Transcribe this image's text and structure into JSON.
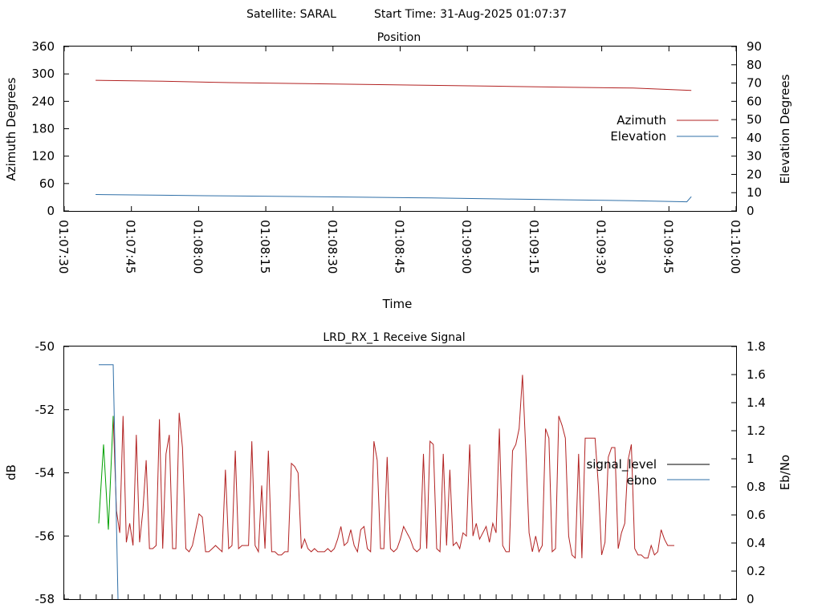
{
  "page": {
    "satellite_label": "Satellite: SARAL",
    "start_time_label": "Start Time: 31-Aug-2025 01:07:37"
  },
  "colors": {
    "azimuth": "#b22222",
    "elevation": "#2f6fa7",
    "signal_level": "#b22222",
    "ebno": "#2f6fa7",
    "start_trace": "#00a000",
    "legend_signal_level": "#000000"
  },
  "chart_data": [
    {
      "type": "line",
      "title": "Position",
      "xlabel": "Time",
      "ylabel": "Azimuth Degrees",
      "y2label": "Elevation Degrees",
      "xlim_seconds": [
        0,
        150
      ],
      "x_tick_labels": [
        "01:07:30",
        "01:07:45",
        "01:08:00",
        "01:08:15",
        "01:08:30",
        "01:08:45",
        "01:09:00",
        "01:09:15",
        "01:09:30",
        "01:09:45",
        "01:10:00"
      ],
      "ylim": [
        0,
        360
      ],
      "y_ticks": [
        0,
        60,
        120,
        180,
        240,
        300,
        360
      ],
      "y2lim": [
        0,
        90
      ],
      "y2_ticks": [
        0,
        10,
        20,
        30,
        40,
        50,
        60,
        70,
        80,
        90
      ],
      "legend": "right",
      "series": [
        {
          "name": "Azimuth",
          "axis": "y",
          "x": [
            "01:07:37",
            "01:07:52",
            "01:08:07",
            "01:08:22",
            "01:08:37",
            "01:08:52",
            "01:09:07",
            "01:09:22",
            "01:09:37",
            "01:09:50"
          ],
          "values": [
            286,
            284,
            281,
            279,
            277,
            275,
            273,
            271,
            269,
            264
          ]
        },
        {
          "name": "Elevation",
          "axis": "y2",
          "x": [
            "01:07:37",
            "01:07:52",
            "01:08:07",
            "01:08:22",
            "01:08:37",
            "01:08:52",
            "01:09:07",
            "01:09:22",
            "01:09:37",
            "01:09:47",
            "01:09:49",
            "01:09:50"
          ],
          "values": [
            9.0,
            8.6,
            8.2,
            7.9,
            7.5,
            7.1,
            6.6,
            6.1,
            5.6,
            5.1,
            5.0,
            7.8
          ]
        }
      ]
    },
    {
      "type": "line",
      "title": "LRD_RX_1 Receive Signal",
      "ylabel": "dB",
      "y2label": "Eb/No",
      "ylim": [
        -58,
        -50
      ],
      "y_ticks": [
        -58,
        -56,
        -54,
        -52,
        -50
      ],
      "y2lim": [
        0,
        1.8
      ],
      "y2_ticks": [
        0,
        0.2,
        0.4,
        0.6,
        0.8,
        1,
        1.2,
        1.4,
        1.6,
        1.8
      ],
      "x_tick_count": 42,
      "legend": "right",
      "series": [
        {
          "name": "signal_level",
          "axis": "y",
          "values": [
            -52.2,
            -55.2,
            -55.9,
            -52.2,
            -56.2,
            -55.6,
            -56.3,
            -52.8,
            -56.2,
            -55.2,
            -53.6,
            -56.4,
            -56.4,
            -56.3,
            -52.3,
            -56.4,
            -53.4,
            -52.8,
            -56.4,
            -56.4,
            -52.1,
            -53.2,
            -56.4,
            -56.5,
            -56.3,
            -55.8,
            -55.3,
            -55.4,
            -56.5,
            -56.5,
            -56.4,
            -56.3,
            -56.4,
            -56.5,
            -53.9,
            -56.4,
            -56.3,
            -53.3,
            -56.4,
            -56.3,
            -56.3,
            -56.3,
            -53.0,
            -56.3,
            -56.5,
            -54.4,
            -56.4,
            -53.3,
            -56.5,
            -56.5,
            -56.6,
            -56.6,
            -56.5,
            -56.5,
            -53.7,
            -53.8,
            -54.0,
            -56.4,
            -56.1,
            -56.4,
            -56.5,
            -56.4,
            -56.5,
            -56.5,
            -56.5,
            -56.4,
            -56.5,
            -56.4,
            -56.1,
            -55.7,
            -56.3,
            -56.2,
            -55.8,
            -56.3,
            -56.5,
            -55.8,
            -55.7,
            -56.4,
            -56.5,
            -53.0,
            -53.6,
            -56.4,
            -56.4,
            -53.5,
            -56.4,
            -56.5,
            -56.4,
            -56.1,
            -55.7,
            -55.9,
            -56.1,
            -56.4,
            -56.5,
            -56.4,
            -53.4,
            -56.4,
            -53.0,
            -53.1,
            -56.4,
            -56.5,
            -53.4,
            -56.3,
            -53.9,
            -56.3,
            -56.2,
            -56.4,
            -55.9,
            -56.0,
            -53.1,
            -56.0,
            -55.6,
            -56.1,
            -55.9,
            -55.7,
            -56.2,
            -55.6,
            -55.9,
            -52.6,
            -56.3,
            -56.5,
            -56.5,
            -53.3,
            -53.1,
            -52.6,
            -50.9,
            -53.3,
            -55.9,
            -56.5,
            -56.0,
            -56.5,
            -56.3,
            -52.6,
            -52.9,
            -56.5,
            -56.4,
            -52.2,
            -52.5,
            -52.9,
            -56.0,
            -56.6,
            -56.7,
            -53.4,
            -56.7,
            -52.9,
            -52.9,
            -52.9,
            -52.9,
            -54.4,
            -56.6,
            -56.2,
            -53.5,
            -53.2,
            -53.2,
            -56.4,
            -55.9,
            -55.6,
            -53.6,
            -53.1,
            -56.4,
            -56.6,
            -56.6,
            -56.7,
            -56.7,
            -56.3,
            -56.6,
            -56.5,
            -55.8,
            -56.1,
            -56.3,
            -56.3,
            -56.3
          ]
        },
        {
          "name": "ebno",
          "axis": "y2",
          "values": [
            1.67,
            1.67,
            1.67,
            1.67,
            0.0
          ]
        }
      ],
      "extra_trace": {
        "axis": "y",
        "values": [
          -55.6,
          -53.1,
          -55.8,
          -52.2
        ]
      }
    }
  ]
}
